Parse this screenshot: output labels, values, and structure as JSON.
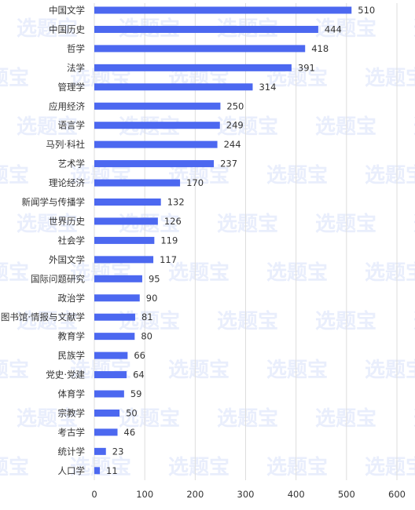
{
  "watermark": "选题宝",
  "colors": {
    "bar": "#4C68F0",
    "grid": "#dddddd",
    "text": "#333333",
    "watermark": "#e9eefc"
  },
  "chart_data": {
    "type": "bar",
    "orientation": "horizontal",
    "title": "",
    "xlabel": "",
    "ylabel": "",
    "categories": [
      "中国文学",
      "中国历史",
      "哲学",
      "法学",
      "管理学",
      "应用经济",
      "语言学",
      "马列·科社",
      "艺术学",
      "理论经济",
      "新闻学与传播学",
      "世界历史",
      "社会学",
      "外国文学",
      "国际问题研究",
      "政治学",
      "图书馆·情报与文献学",
      "教育学",
      "民族学",
      "党史·党建",
      "体育学",
      "宗教学",
      "考古学",
      "统计学",
      "人口学"
    ],
    "values": [
      510,
      444,
      418,
      391,
      314,
      250,
      249,
      244,
      237,
      170,
      132,
      126,
      119,
      117,
      95,
      90,
      81,
      80,
      66,
      64,
      59,
      50,
      46,
      23,
      11
    ],
    "xlim": [
      0,
      600
    ],
    "xticks": [
      0,
      100,
      200,
      300,
      400,
      500,
      600
    ],
    "grid": true,
    "data_labels": true
  }
}
